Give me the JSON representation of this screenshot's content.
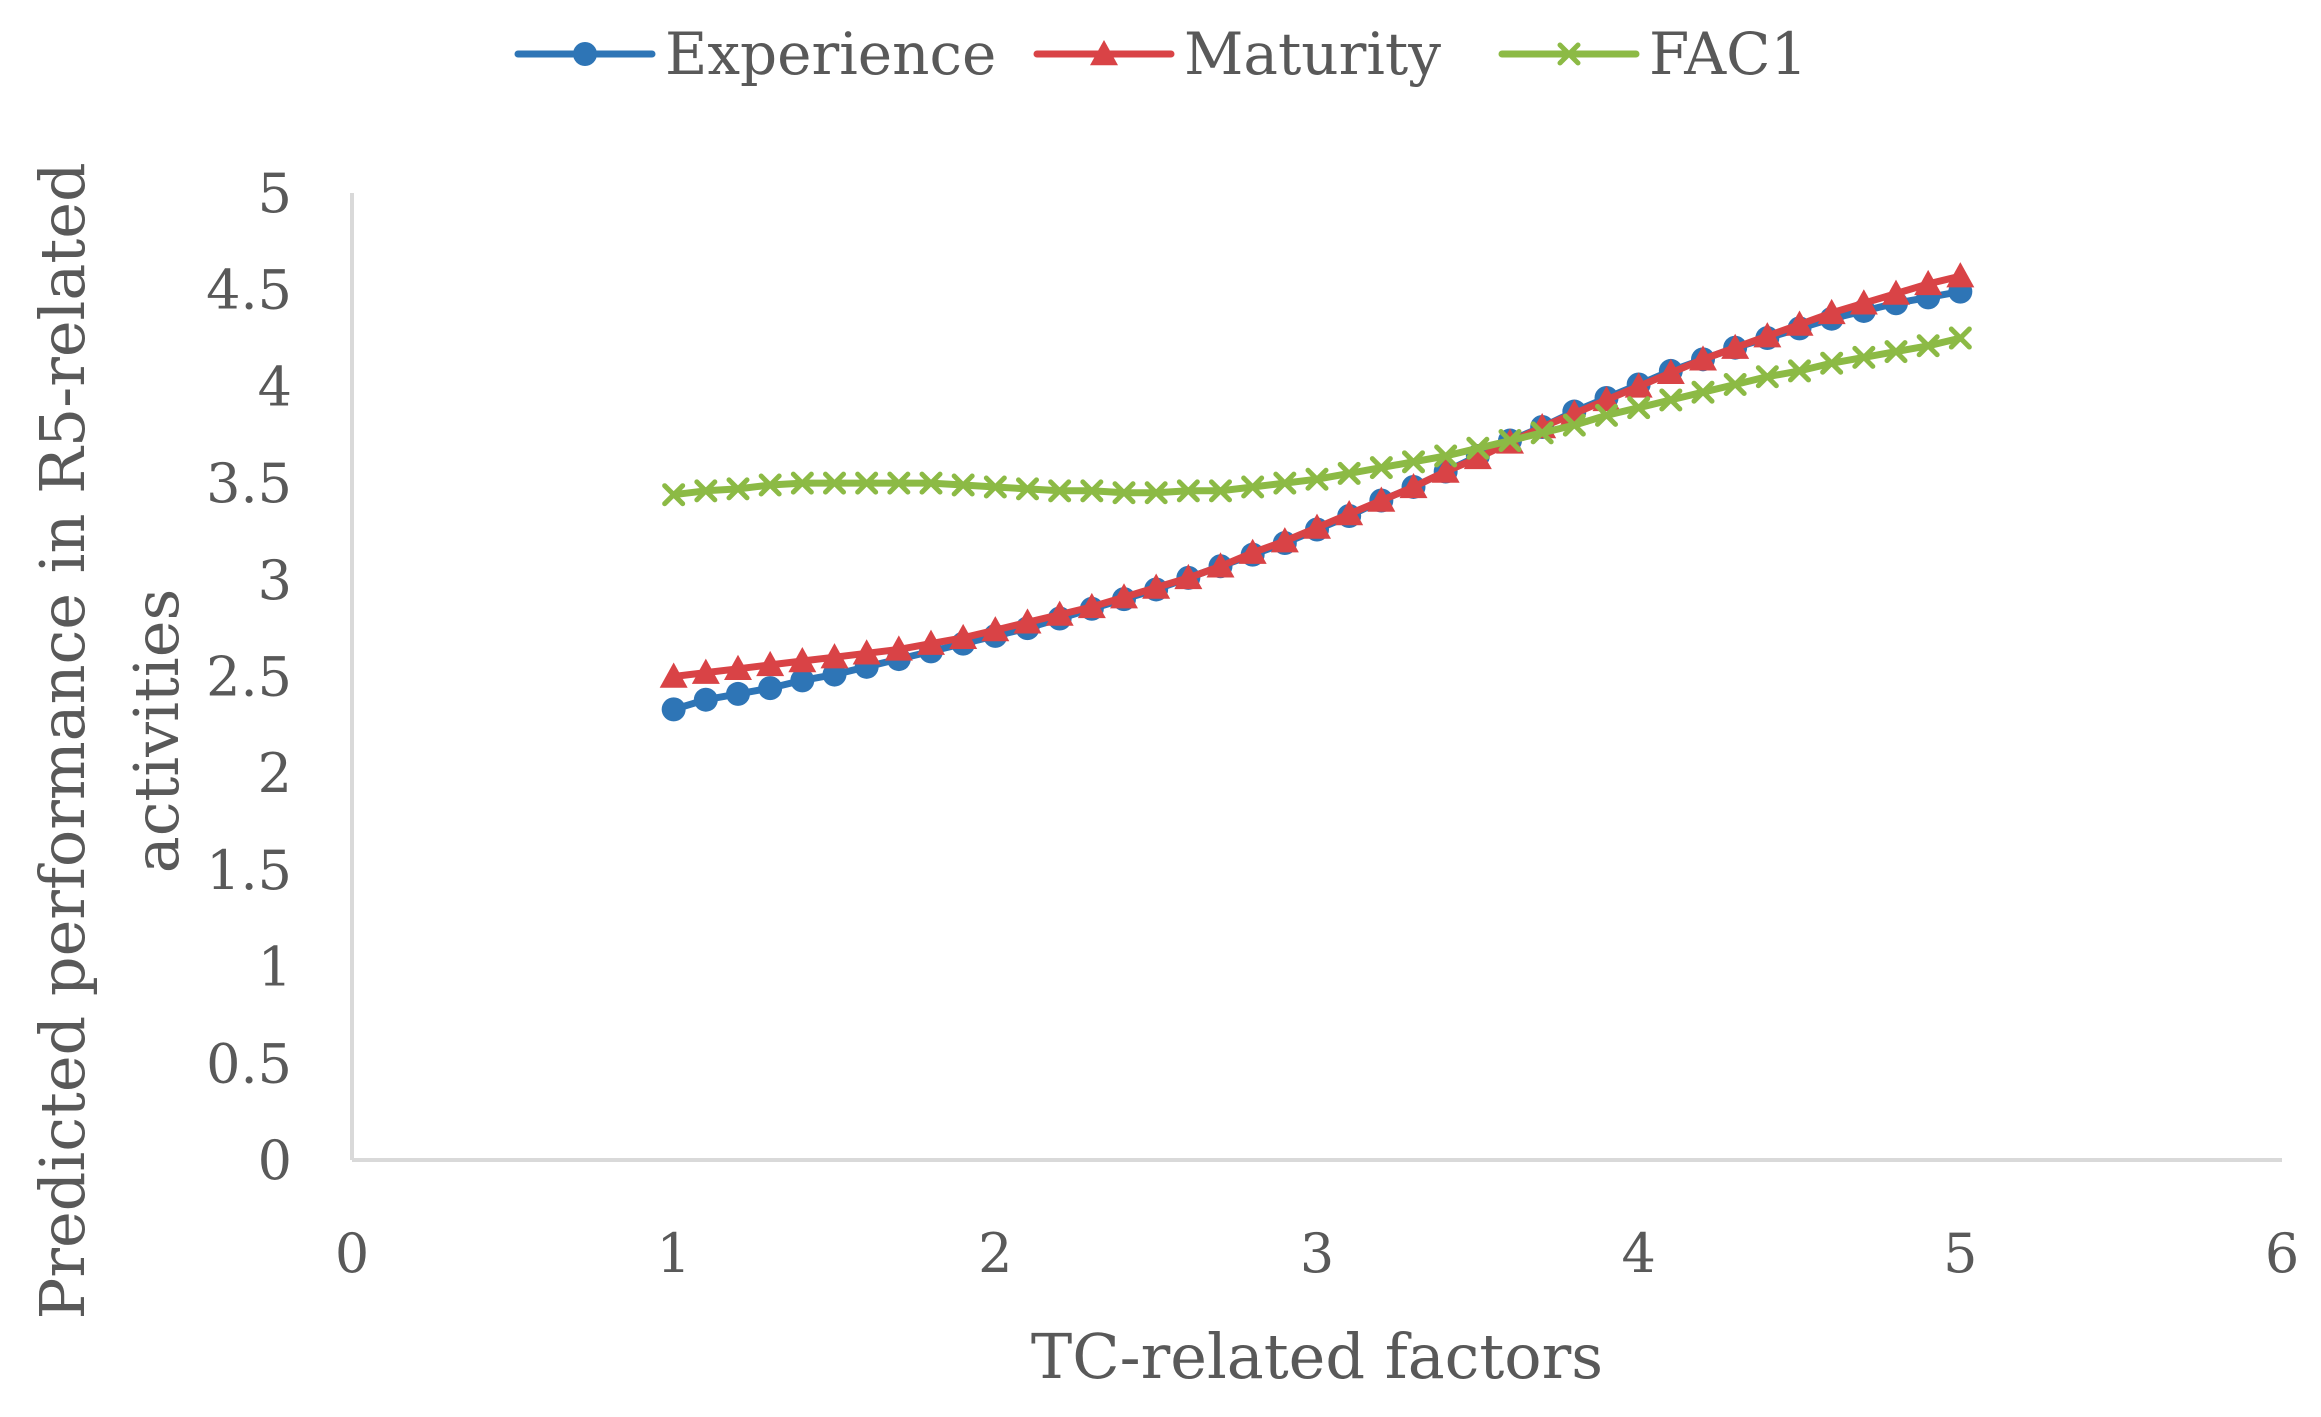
{
  "chart_data": {
    "type": "line",
    "title": "",
    "xlabel": "TC-related factors",
    "ylabel_line1": "Predicted performance in R5-related",
    "ylabel_line2": "activities",
    "xlim": [
      0,
      6
    ],
    "ylim": [
      0,
      5
    ],
    "x_ticks": [
      "0",
      "1",
      "2",
      "3",
      "4",
      "5",
      "6"
    ],
    "y_ticks": [
      "0",
      "0.5",
      "1",
      "1.5",
      "2",
      "2.5",
      "3",
      "3.5",
      "4",
      "4.5",
      "5"
    ],
    "grid": false,
    "legend_position": "top-center",
    "x": [
      1.0,
      1.1,
      1.2,
      1.3,
      1.4,
      1.5,
      1.6,
      1.7,
      1.8,
      1.9,
      2.0,
      2.1,
      2.2,
      2.3,
      2.4,
      2.5,
      2.6,
      2.7,
      2.8,
      2.9,
      3.0,
      3.1,
      3.2,
      3.3,
      3.4,
      3.5,
      3.6,
      3.7,
      3.8,
      3.9,
      4.0,
      4.1,
      4.2,
      4.3,
      4.4,
      4.5,
      4.6,
      4.7,
      4.8,
      4.9,
      5.0
    ],
    "series": [
      {
        "name": "Experience",
        "color": "#2e75b6",
        "marker": "circle",
        "values": [
          2.33,
          2.38,
          2.41,
          2.44,
          2.48,
          2.51,
          2.55,
          2.59,
          2.63,
          2.67,
          2.71,
          2.75,
          2.8,
          2.85,
          2.9,
          2.95,
          3.01,
          3.07,
          3.13,
          3.19,
          3.26,
          3.33,
          3.41,
          3.48,
          3.56,
          3.64,
          3.72,
          3.79,
          3.87,
          3.94,
          4.01,
          4.08,
          4.14,
          4.2,
          4.25,
          4.3,
          4.35,
          4.39,
          4.43,
          4.46,
          4.49
        ]
      },
      {
        "name": "Maturity",
        "color": "#d94346",
        "marker": "triangle",
        "values": [
          2.5,
          2.52,
          2.54,
          2.56,
          2.58,
          2.6,
          2.62,
          2.64,
          2.67,
          2.7,
          2.74,
          2.78,
          2.82,
          2.86,
          2.91,
          2.96,
          3.01,
          3.07,
          3.14,
          3.2,
          3.27,
          3.34,
          3.41,
          3.48,
          3.56,
          3.63,
          3.71,
          3.79,
          3.86,
          3.93,
          4.0,
          4.07,
          4.14,
          4.2,
          4.26,
          4.32,
          4.38,
          4.43,
          4.48,
          4.53,
          4.57
        ]
      },
      {
        "name": "FAC1",
        "color": "#8cba45",
        "marker": "x",
        "values": [
          3.44,
          3.46,
          3.47,
          3.49,
          3.5,
          3.5,
          3.5,
          3.5,
          3.5,
          3.49,
          3.48,
          3.47,
          3.46,
          3.46,
          3.45,
          3.45,
          3.46,
          3.46,
          3.48,
          3.5,
          3.52,
          3.55,
          3.58,
          3.61,
          3.64,
          3.68,
          3.72,
          3.76,
          3.8,
          3.85,
          3.89,
          3.93,
          3.97,
          4.01,
          4.05,
          4.08,
          4.12,
          4.15,
          4.18,
          4.21,
          4.25
        ]
      }
    ]
  }
}
